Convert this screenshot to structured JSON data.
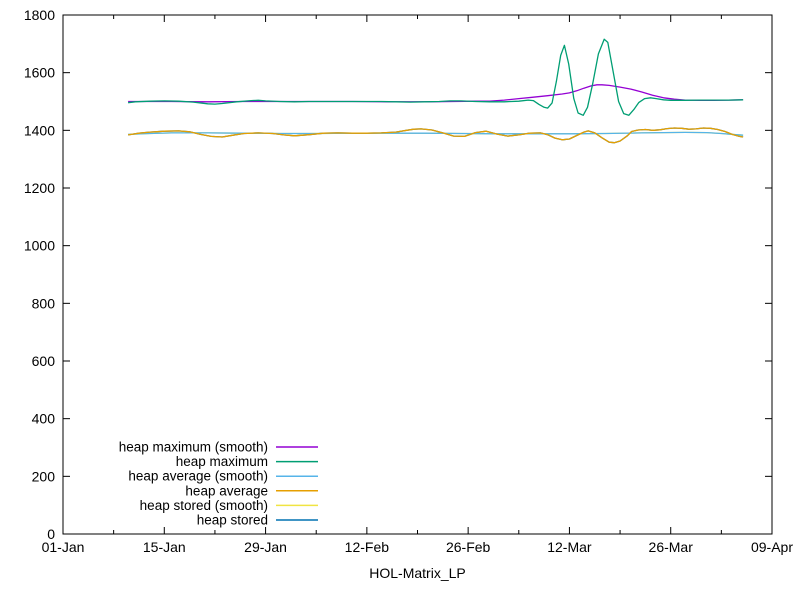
{
  "figure": {
    "background": "#ffffff",
    "border_color": "#000000"
  },
  "chart_data": {
    "type": "line",
    "title": "",
    "xlabel": "HOL-Matrix_LP",
    "ylabel": "",
    "grid": false,
    "x_axis": {
      "unit": "date",
      "range_days": [
        0,
        98
      ],
      "tick_days": [
        0,
        14,
        28,
        42,
        56,
        70,
        84,
        98
      ],
      "tick_labels": [
        "01-Jan",
        "15-Jan",
        "29-Jan",
        "12-Feb",
        "26-Feb",
        "12-Mar",
        "26-Mar",
        "09-Apr"
      ],
      "minor_tick_days": [
        7,
        21,
        35,
        49,
        63,
        77,
        91
      ]
    },
    "y_axis": {
      "range": [
        0,
        1800
      ],
      "ticks": [
        0,
        200,
        400,
        600,
        800,
        1000,
        1200,
        1400,
        1600,
        1800
      ]
    },
    "legend": {
      "position": "bottom-left-inside",
      "entries": [
        "heap maximum (smooth)",
        "heap maximum",
        "heap average (smooth)",
        "heap average",
        "heap stored (smooth)",
        "heap stored"
      ]
    },
    "series": [
      {
        "name": "heap maximum (smooth)",
        "color": "#9400D3",
        "z": 3,
        "x_days": [
          9,
          15,
          20,
          25,
          30,
          35,
          40,
          45,
          50,
          54,
          57,
          59,
          61,
          63,
          65,
          67,
          69,
          70,
          71,
          72,
          73,
          73.8,
          74.5,
          75.5,
          77,
          78.5,
          80,
          81.5,
          83,
          84.5,
          86,
          88,
          90,
          92,
          94
        ],
        "values": [
          1500,
          1500,
          1499,
          1500,
          1500,
          1500,
          1500,
          1499,
          1499,
          1500,
          1501,
          1501,
          1505,
          1510,
          1515,
          1520,
          1526,
          1530,
          1537,
          1546,
          1554,
          1558,
          1558,
          1556,
          1550,
          1543,
          1533,
          1522,
          1513,
          1508,
          1505,
          1504,
          1504,
          1505,
          1506
        ]
      },
      {
        "name": "heap maximum",
        "color": "#009E73",
        "z": 6,
        "x_days": [
          9,
          10,
          12,
          14,
          16,
          18,
          20,
          21,
          22,
          24,
          26,
          27,
          28,
          30,
          32,
          34,
          36,
          38,
          40,
          42,
          44,
          46,
          48,
          50,
          52,
          53.5,
          55,
          57,
          59,
          61,
          63,
          64.3,
          65,
          65.8,
          66.5,
          67,
          67.6,
          68.2,
          68.8,
          69.3,
          69.9,
          70.6,
          71.2,
          71.9,
          72.5,
          73.2,
          74,
          74.8,
          75.3,
          76,
          76.8,
          77.5,
          78.2,
          78.9,
          79.6,
          80.4,
          81.2,
          82,
          83,
          84,
          86,
          88,
          90,
          92,
          94
        ],
        "values": [
          1496,
          1499,
          1501,
          1502,
          1501,
          1498,
          1492,
          1491,
          1493,
          1499,
          1503,
          1504,
          1502,
          1500,
          1499,
          1500,
          1500,
          1500,
          1500,
          1500,
          1500,
          1499,
          1498,
          1499,
          1500,
          1502,
          1502,
          1500,
          1499,
          1499,
          1501,
          1505,
          1503,
          1490,
          1480,
          1477,
          1495,
          1570,
          1660,
          1695,
          1630,
          1510,
          1460,
          1452,
          1480,
          1560,
          1665,
          1716,
          1705,
          1610,
          1500,
          1458,
          1452,
          1472,
          1497,
          1510,
          1513,
          1510,
          1506,
          1504,
          1504,
          1505,
          1505,
          1505,
          1506
        ]
      },
      {
        "name": "heap average (smooth)",
        "color": "#56B4E9",
        "z": 4,
        "x_days": [
          9,
          12,
          15,
          20,
          25,
          30,
          35,
          40,
          45,
          50,
          55,
          60,
          65,
          70,
          75,
          80,
          83,
          86,
          89,
          91,
          93,
          94
        ],
        "values": [
          1386,
          1389,
          1391,
          1391,
          1390,
          1389,
          1389,
          1390,
          1390,
          1390,
          1389,
          1388,
          1388,
          1388,
          1389,
          1391,
          1392,
          1393,
          1392,
          1389,
          1385,
          1383
        ]
      },
      {
        "name": "heap average",
        "color": "#E69F00",
        "z": 5,
        "x_days": [
          9,
          10.5,
          12,
          14,
          16,
          17.5,
          19,
          20.5,
          22,
          23.5,
          25,
          27,
          29,
          30.5,
          32,
          34,
          36,
          38,
          40,
          42,
          44,
          46,
          47.5,
          48.5,
          49.5,
          51,
          52.5,
          54,
          55.5,
          57,
          58.5,
          60,
          61.5,
          63,
          64.5,
          66,
          67,
          68,
          69,
          70,
          71,
          72,
          72.6,
          73.5,
          74.5,
          75.5,
          76.2,
          77,
          78,
          78.6,
          79.5,
          80.5,
          81.5,
          82.5,
          83.5,
          84.5,
          85.5,
          86.5,
          87.5,
          88.5,
          89.5,
          90.5,
          91.5,
          92.5,
          93.5,
          94
        ],
        "values": [
          1384,
          1390,
          1394,
          1397,
          1398,
          1395,
          1386,
          1379,
          1377,
          1383,
          1389,
          1391,
          1389,
          1384,
          1381,
          1385,
          1390,
          1391,
          1390,
          1390,
          1391,
          1394,
          1400,
          1404,
          1405,
          1401,
          1391,
          1380,
          1379,
          1392,
          1397,
          1387,
          1380,
          1384,
          1390,
          1391,
          1385,
          1373,
          1367,
          1370,
          1382,
          1394,
          1398,
          1391,
          1374,
          1359,
          1357,
          1363,
          1381,
          1396,
          1401,
          1403,
          1400,
          1402,
          1406,
          1408,
          1407,
          1404,
          1405,
          1408,
          1407,
          1403,
          1396,
          1386,
          1379,
          1377
        ]
      },
      {
        "name": "heap stored (smooth)",
        "color": "#F0E442",
        "z": 1,
        "x_days": [
          9,
          12,
          15,
          20,
          25,
          30,
          35,
          40,
          45,
          50,
          55,
          60,
          65,
          70,
          75,
          80,
          83,
          86,
          89,
          91,
          93,
          94
        ],
        "values": [
          1386,
          1389,
          1391,
          1391,
          1390,
          1389,
          1389,
          1390,
          1390,
          1390,
          1389,
          1388,
          1388,
          1388,
          1389,
          1391,
          1392,
          1393,
          1392,
          1389,
          1385,
          1383
        ]
      },
      {
        "name": "heap stored",
        "color": "#0072B2",
        "z": 2,
        "x_days": [
          9,
          10.5,
          12,
          14,
          16,
          17.5,
          19,
          20.5,
          22,
          23.5,
          25,
          27,
          29,
          30.5,
          32,
          34,
          36,
          38,
          40,
          42,
          44,
          46,
          47.5,
          48.5,
          49.5,
          51,
          52.5,
          54,
          55.5,
          57,
          58.5,
          60,
          61.5,
          63,
          64.5,
          66,
          67,
          68,
          69,
          70,
          71,
          72,
          72.6,
          73.5,
          74.5,
          75.5,
          76.2,
          77,
          78,
          78.6,
          79.5,
          80.5,
          81.5,
          82.5,
          83.5,
          84.5,
          85.5,
          86.5,
          87.5,
          88.5,
          89.5,
          90.5,
          91.5,
          92.5,
          93.5,
          94
        ],
        "values": [
          1384,
          1390,
          1394,
          1397,
          1398,
          1395,
          1386,
          1379,
          1377,
          1383,
          1389,
          1391,
          1389,
          1384,
          1381,
          1385,
          1390,
          1391,
          1390,
          1390,
          1391,
          1394,
          1400,
          1404,
          1405,
          1401,
          1391,
          1380,
          1379,
          1392,
          1397,
          1387,
          1380,
          1384,
          1390,
          1391,
          1385,
          1373,
          1367,
          1370,
          1382,
          1394,
          1398,
          1391,
          1374,
          1359,
          1357,
          1363,
          1381,
          1396,
          1401,
          1403,
          1400,
          1402,
          1406,
          1408,
          1407,
          1404,
          1405,
          1408,
          1407,
          1403,
          1396,
          1386,
          1379,
          1377
        ]
      }
    ]
  }
}
